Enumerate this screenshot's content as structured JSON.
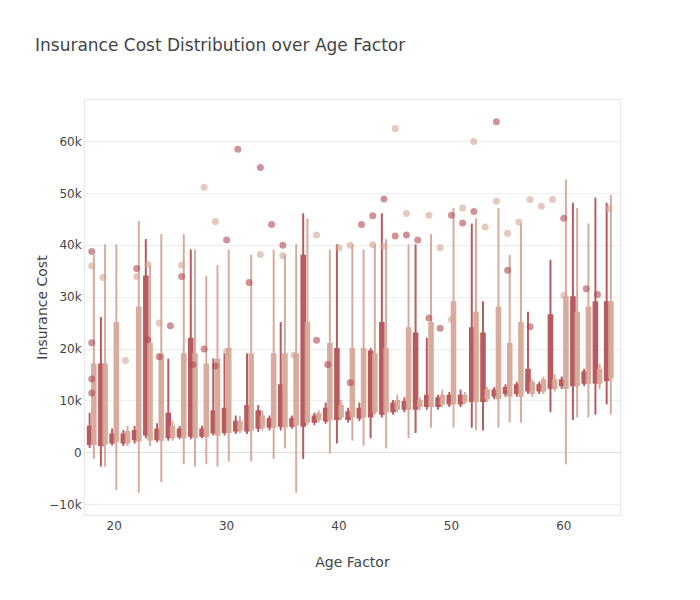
{
  "chart_data": {
    "type": "box",
    "title": "Insurance Cost Distribution over Age Factor",
    "x_label": "Age Factor",
    "y_label": "Insurance Cost",
    "xlim": [
      17.4,
      65
    ],
    "xticks": [
      20,
      30,
      40,
      50,
      60
    ],
    "ylim": [
      -12000,
      68000
    ],
    "yticks": [
      {
        "value": -10000,
        "label": "−10k"
      },
      0,
      {
        "value": 10000,
        "label": "10k"
      },
      {
        "value": 20000,
        "label": "20k"
      },
      {
        "value": 30000,
        "label": "30k"
      },
      {
        "value": 40000,
        "label": "40k"
      },
      {
        "value": 50000,
        "label": "50k"
      },
      {
        "value": 60000,
        "label": "60k"
      }
    ],
    "grid": true,
    "x": [
      18,
      19,
      20,
      21,
      22,
      23,
      24,
      25,
      26,
      27,
      28,
      29,
      30,
      31,
      32,
      33,
      34,
      35,
      36,
      37,
      38,
      39,
      40,
      41,
      42,
      43,
      44,
      45,
      46,
      47,
      48,
      49,
      50,
      51,
      52,
      53,
      54,
      55,
      56,
      57,
      58,
      59,
      60,
      61,
      62,
      63,
      64
    ],
    "series": [
      {
        "color": "#b04a50",
        "lower": [
          1100,
          -2500,
          1600,
          1500,
          2000,
          3000,
          2200,
          2500,
          2800,
          2800,
          3000,
          3500,
          3500,
          3800,
          3800,
          4200,
          4500,
          4500,
          4800,
          -1000,
          5500,
          5800,
          2000,
          6000,
          6300,
          3000,
          7000,
          7500,
          8000,
          4000,
          8500,
          8500,
          9000,
          9000,
          5000,
          4500,
          10500,
          11000,
          11000,
          11500,
          11500,
          8000,
          12500,
          6500,
          13000,
          7500,
          9500
        ],
        "q1": [
          1700,
          1500,
          2000,
          2000,
          2600,
          3500,
          2600,
          3000,
          3200,
          3300,
          3300,
          3900,
          4000,
          4300,
          4300,
          4800,
          5000,
          5200,
          5200,
          5200,
          6000,
          6200,
          6500,
          6500,
          6800,
          7000,
          7500,
          8000,
          8500,
          8500,
          9000,
          9000,
          9500,
          9500,
          10000,
          10000,
          11000,
          11500,
          11500,
          12000,
          12000,
          12500,
          13000,
          13000,
          13500,
          13500,
          14000
        ],
        "median": [
          2200,
          2200,
          2800,
          2500,
          3200,
          4500,
          3200,
          3800,
          3600,
          4500,
          3700,
          4500,
          4500,
          4800,
          4800,
          5500,
          5800,
          6000,
          5800,
          6200,
          6500,
          7000,
          7500,
          7200,
          7500,
          8000,
          8500,
          9000,
          9000,
          9500,
          9500,
          9500,
          10000,
          10000,
          11000,
          11000,
          11500,
          12000,
          12000,
          12500,
          12500,
          13000,
          13500,
          14000,
          14500,
          14500,
          14500
        ],
        "q3": [
          5000,
          17000,
          3500,
          3500,
          4200,
          34000,
          4500,
          7500,
          4500,
          22000,
          4500,
          8000,
          8500,
          6000,
          9000,
          8000,
          6500,
          13000,
          6500,
          38000,
          7000,
          8500,
          20000,
          7800,
          8500,
          19500,
          25000,
          9500,
          9800,
          23000,
          11000,
          10500,
          11000,
          11000,
          24000,
          23000,
          12000,
          12500,
          13000,
          16000,
          13000,
          26500,
          14000,
          30000,
          15500,
          29000,
          29000
        ],
        "upper": [
          7500,
          26000,
          4500,
          4200,
          5000,
          41000,
          5500,
          18000,
          5000,
          39000,
          5000,
          18000,
          19000,
          7000,
          19000,
          9000,
          7000,
          25000,
          7000,
          46000,
          7500,
          9500,
          40000,
          8500,
          9500,
          20000,
          46000,
          10000,
          10500,
          40000,
          22000,
          11000,
          11500,
          12000,
          44000,
          29000,
          12500,
          13000,
          13500,
          27000,
          13500,
          37000,
          14500,
          48000,
          16000,
          49000,
          48000
        ],
        "outliers": {
          "x": [
            18,
            18,
            18,
            18,
            22,
            23,
            24,
            25,
            26,
            27,
            28,
            29,
            30,
            31,
            32,
            33,
            34,
            35,
            38,
            39,
            41,
            42,
            43,
            44,
            45,
            46,
            47,
            48,
            49,
            50,
            51,
            52,
            54,
            55,
            57,
            60,
            62,
            63
          ],
          "y": [
            38800,
            21200,
            14200,
            11500,
            35500,
            21800,
            18500,
            24500,
            34000,
            17000,
            20000,
            16700,
            41000,
            58500,
            32800,
            55000,
            44000,
            40000,
            21700,
            17000,
            13500,
            44000,
            45700,
            48900,
            41800,
            42000,
            41000,
            26000,
            24000,
            45800,
            44300,
            46500,
            63800,
            35200,
            24300,
            45200,
            31600,
            30500
          ]
        }
      },
      {
        "color": "#d4a493",
        "lower": [
          -1000,
          -2500,
          -7000,
          1500,
          -7500,
          1500,
          -5500,
          2500,
          -2000,
          -2500,
          -2000,
          -2500,
          -1500,
          4000,
          -1500,
          4500,
          -1000,
          1000,
          -7500,
          5500,
          6000,
          0,
          6500,
          2500,
          1500,
          7500,
          1000,
          8000,
          3000,
          8500,
          5000,
          9000,
          5000,
          9500,
          4500,
          10000,
          5000,
          6000,
          6000,
          11000,
          11500,
          12000,
          -2000,
          7000,
          7000,
          12500,
          7500
        ],
        "q1": [
          1700,
          1800,
          2200,
          2000,
          2300,
          2500,
          2500,
          3000,
          3000,
          3000,
          3200,
          3500,
          4000,
          4500,
          4500,
          5000,
          5000,
          5000,
          5500,
          6000,
          6500,
          6500,
          7000,
          7000,
          7000,
          8000,
          8000,
          8500,
          8500,
          9000,
          9000,
          9500,
          9500,
          10000,
          10000,
          10500,
          10500,
          11000,
          11000,
          11500,
          12000,
          12500,
          12500,
          13000,
          13500,
          13500,
          14500
        ],
        "median": [
          2500,
          2500,
          3000,
          2600,
          3500,
          3500,
          3500,
          3800,
          4000,
          4000,
          4200,
          4500,
          5000,
          5000,
          5500,
          5800,
          6000,
          6500,
          6500,
          6500,
          7000,
          7500,
          7800,
          8000,
          8500,
          9000,
          9000,
          9000,
          9500,
          9500,
          10000,
          10000,
          10500,
          10500,
          11000,
          11000,
          11500,
          12000,
          12000,
          12500,
          13000,
          13000,
          13500,
          14000,
          14500,
          15000,
          15500
        ],
        "q3": [
          17000,
          17000,
          25000,
          4000,
          28000,
          21000,
          19000,
          5000,
          19000,
          19000,
          17000,
          18000,
          20000,
          6000,
          19000,
          7000,
          19000,
          19000,
          19000,
          25000,
          7500,
          21000,
          9000,
          20000,
          20000,
          19000,
          20000,
          10000,
          24000,
          10000,
          25000,
          11000,
          29000,
          11000,
          27000,
          12000,
          28000,
          21000,
          25000,
          13500,
          14000,
          14000,
          30000,
          27000,
          28000,
          16000,
          29000
        ],
        "upper": [
          38000,
          40000,
          40000,
          5000,
          44500,
          36000,
          42000,
          6000,
          42000,
          39000,
          34000,
          36000,
          39000,
          7000,
          38000,
          8000,
          39000,
          38000,
          40000,
          45000,
          8000,
          39000,
          10000,
          40000,
          39000,
          40000,
          41000,
          11000,
          40000,
          10500,
          42000,
          12000,
          47000,
          11500,
          45000,
          12500,
          47000,
          38000,
          44000,
          14000,
          14500,
          15000,
          52500,
          47000,
          44000,
          17000,
          49500
        ],
        "outliers": {
          "x": [
            18,
            19,
            21,
            22,
            23,
            24,
            26,
            28,
            29,
            30,
            33,
            35,
            36,
            38,
            40,
            41,
            43,
            44,
            45,
            46,
            48,
            49,
            50,
            51,
            52,
            53,
            54,
            55,
            56,
            57,
            58,
            59,
            60,
            64
          ],
          "y": [
            36000,
            33800,
            17800,
            34000,
            36300,
            25000,
            36200,
            51200,
            44600,
            19500,
            38200,
            38000,
            18800,
            42000,
            39500,
            40000,
            40100,
            39800,
            62500,
            46100,
            45800,
            39500,
            25700,
            47200,
            60000,
            43500,
            48500,
            42300,
            44500,
            48800,
            47500,
            48800,
            30300,
            47100
          ]
        }
      }
    ]
  }
}
